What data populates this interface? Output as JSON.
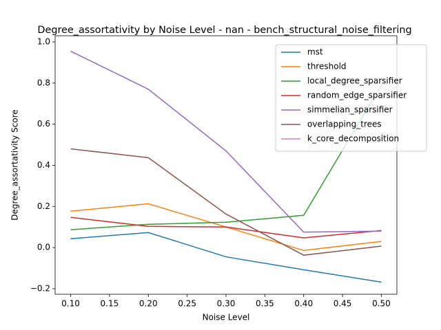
{
  "chart_data": {
    "type": "line",
    "title": "Degree_assortativity by Noise Level - nan - bench_structural_noise_filtering",
    "x_label": "Noise Level",
    "y_label": "Degree_assortativity Score",
    "x": [
      0.1,
      0.2,
      0.3,
      0.4,
      0.5
    ],
    "xlim": [
      0.08,
      0.52
    ],
    "xticks": [
      {
        "value": 0.1,
        "label": "0.10"
      },
      {
        "value": 0.15,
        "label": "0.15"
      },
      {
        "value": 0.2,
        "label": "0.20"
      },
      {
        "value": 0.25,
        "label": "0.25"
      },
      {
        "value": 0.3,
        "label": "0.30"
      },
      {
        "value": 0.35,
        "label": "0.35"
      },
      {
        "value": 0.4,
        "label": "0.40"
      },
      {
        "value": 0.45,
        "label": "0.45"
      },
      {
        "value": 0.5,
        "label": "0.50"
      }
    ],
    "ylim": [
      -0.227,
      1.03
    ],
    "yticks": [
      {
        "value": -0.2,
        "label": "−0.2"
      },
      {
        "value": 0,
        "label": "0.0"
      },
      {
        "value": 0.2,
        "label": "0.2"
      },
      {
        "value": 0.4,
        "label": "0.4"
      },
      {
        "value": 0.6,
        "label": "0.6"
      },
      {
        "value": 0.8,
        "label": "0.8"
      },
      {
        "value": 1,
        "label": "1.0"
      }
    ],
    "legend": "upper right",
    "series": [
      {
        "name": "mst",
        "color": "#1f77b4",
        "values": [
          0.043,
          0.073,
          -0.045,
          -0.108,
          -0.168
        ]
      },
      {
        "name": "threshold",
        "color": "#ff7f0e",
        "values": [
          0.177,
          0.213,
          0.1,
          -0.014,
          0.03
        ]
      },
      {
        "name": "local_degree_sparsifier",
        "color": "#2ca02c",
        "values": [
          0.087,
          0.113,
          0.123,
          0.157,
          0.79
        ]
      },
      {
        "name": "random_edge_sparsifier",
        "color": "#d62728",
        "values": [
          0.147,
          0.103,
          0.1,
          0.047,
          0.083
        ]
      },
      {
        "name": "simmelian_sparsifier",
        "color": "#9467bd",
        "values": [
          0.955,
          0.77,
          0.47,
          0.075,
          0.08
        ]
      },
      {
        "name": "overlapping_trees",
        "color": "#8c564b",
        "values": [
          0.48,
          0.437,
          0.163,
          -0.037,
          0.007
        ]
      },
      {
        "name": "k_core_decomposition",
        "color": "#e377c2",
        "values": [
          null,
          null,
          null,
          null,
          null
        ]
      }
    ]
  }
}
